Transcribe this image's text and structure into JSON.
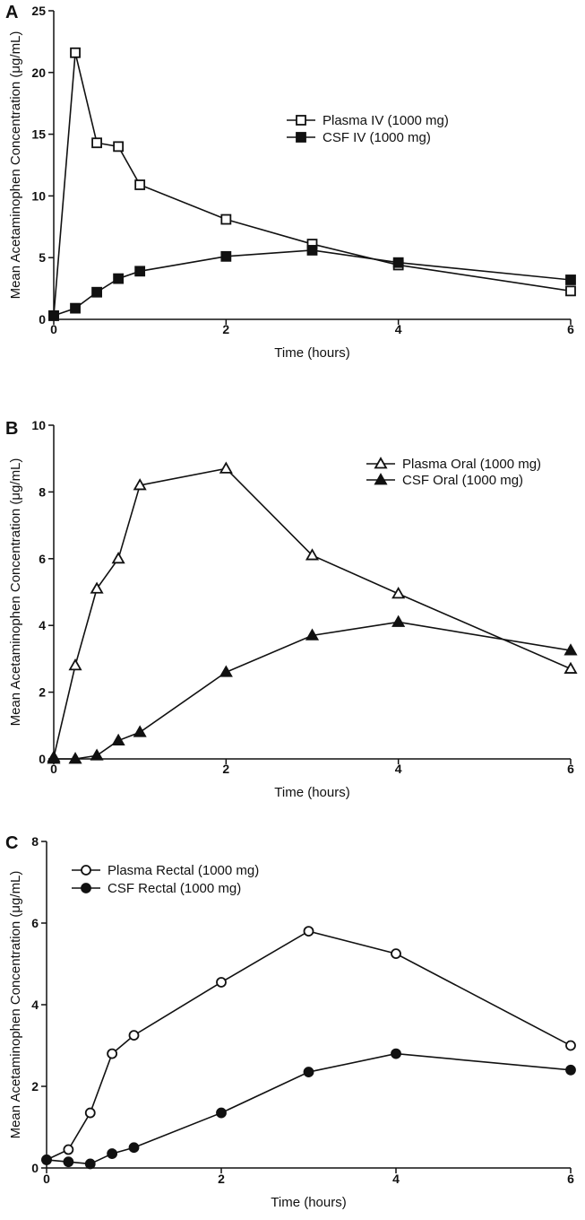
{
  "chart_data": [
    {
      "type": "line",
      "panel_label": "A",
      "xlabel": "Time (hours)",
      "ylabel": "Mean Acetaminophen Concentration (μg/mL)",
      "xlim": [
        0,
        6
      ],
      "ylim": [
        0,
        25
      ],
      "xticks": [
        0,
        2,
        4,
        6
      ],
      "yticks": [
        0,
        5,
        10,
        15,
        20,
        25
      ],
      "legend_position": "upper-right",
      "series": [
        {
          "name": "Plasma IV (1000 mg)",
          "marker": "square-open",
          "x": [
            0,
            0.25,
            0.5,
            0.75,
            1,
            2,
            3,
            4,
            6
          ],
          "y": [
            0.3,
            21.6,
            14.3,
            14.0,
            10.9,
            8.1,
            6.1,
            4.4,
            2.3
          ]
        },
        {
          "name": "CSF IV (1000 mg)",
          "marker": "square-filled",
          "x": [
            0,
            0.25,
            0.5,
            0.75,
            1,
            2,
            3,
            4,
            6
          ],
          "y": [
            0.3,
            0.9,
            2.2,
            3.3,
            3.9,
            5.1,
            5.6,
            4.6,
            3.2
          ]
        }
      ]
    },
    {
      "type": "line",
      "panel_label": "B",
      "xlabel": "Time (hours)",
      "ylabel": "Mean Acetaminophen Concentration (μg/mL)",
      "xlim": [
        0,
        6
      ],
      "ylim": [
        0,
        10
      ],
      "xticks": [
        0,
        2,
        4,
        6
      ],
      "yticks": [
        0,
        2,
        4,
        6,
        8,
        10
      ],
      "legend_position": "upper-right",
      "series": [
        {
          "name": "Plasma Oral (1000 mg)",
          "marker": "triangle-open",
          "x": [
            0,
            0.25,
            0.5,
            0.75,
            1,
            2,
            3,
            4,
            6
          ],
          "y": [
            0.05,
            2.8,
            5.1,
            6.0,
            8.2,
            8.7,
            6.1,
            4.95,
            2.7
          ]
        },
        {
          "name": "CSF Oral (1000 mg)",
          "marker": "triangle-filled",
          "x": [
            0,
            0.25,
            0.5,
            0.75,
            1,
            2,
            3,
            4,
            6
          ],
          "y": [
            0.0,
            0.0,
            0.1,
            0.55,
            0.8,
            2.6,
            3.7,
            4.1,
            3.25
          ]
        }
      ]
    },
    {
      "type": "line",
      "panel_label": "C",
      "xlabel": "Time (hours)",
      "ylabel": "Mean Acetaminophen Concentration (μg/mL)",
      "xlim": [
        0,
        6
      ],
      "ylim": [
        0,
        8
      ],
      "xticks": [
        0,
        2,
        4,
        6
      ],
      "yticks": [
        0,
        2,
        4,
        6,
        8
      ],
      "legend_position": "upper-left",
      "series": [
        {
          "name": "Plasma Rectal (1000 mg)",
          "marker": "circle-open",
          "x": [
            0,
            0.25,
            0.5,
            0.75,
            1,
            2,
            3,
            4,
            6
          ],
          "y": [
            0.2,
            0.45,
            1.35,
            2.8,
            3.25,
            4.55,
            5.8,
            5.25,
            3.0
          ]
        },
        {
          "name": "CSF Rectal (1000 mg)",
          "marker": "circle-filled",
          "x": [
            0,
            0.25,
            0.5,
            0.75,
            1,
            2,
            3,
            4,
            6
          ],
          "y": [
            0.2,
            0.15,
            0.1,
            0.35,
            0.5,
            1.35,
            2.35,
            2.8,
            2.4
          ]
        }
      ]
    }
  ]
}
